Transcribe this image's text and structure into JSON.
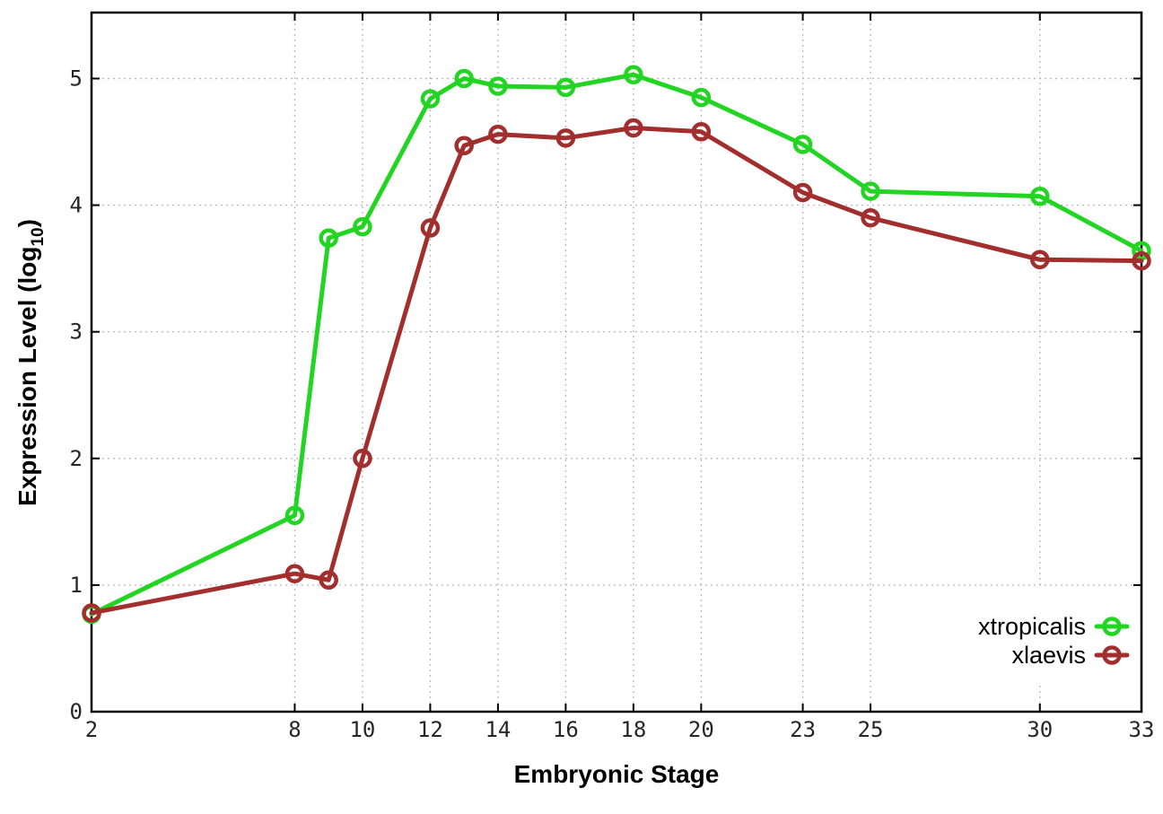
{
  "figure": {
    "background_color": "#ffffff",
    "border_color": "#000000",
    "grid_color": "#bdbdbd",
    "tick_text_color": "#262626"
  },
  "chart_data": {
    "type": "line",
    "title": "",
    "xlabel": "Embryonic Stage",
    "ylabel": "Expression Level (log10)",
    "ylabel_parts": {
      "prefix": "Expression Level (log",
      "sub": "10",
      "suffix": ")"
    },
    "x": [
      2,
      8,
      9,
      10,
      12,
      13,
      14,
      16,
      18,
      20,
      23,
      25,
      30,
      33
    ],
    "series": [
      {
        "name": "xtropicalis",
        "color": "#22d522",
        "values": [
          0.77,
          1.55,
          3.74,
          3.83,
          4.84,
          5.0,
          4.94,
          4.93,
          5.03,
          4.85,
          4.48,
          4.11,
          4.07,
          3.64
        ]
      },
      {
        "name": "xlaevis",
        "color": "#a32e2e",
        "values": [
          0.78,
          1.09,
          1.04,
          2.0,
          3.82,
          4.47,
          4.56,
          4.53,
          4.61,
          4.58,
          4.1,
          3.9,
          3.57,
          3.56
        ]
      }
    ],
    "x_ticks": [
      2,
      8,
      10,
      12,
      14,
      16,
      18,
      20,
      23,
      25,
      30,
      33
    ],
    "y_ticks": [
      0,
      1,
      2,
      3,
      4,
      5
    ],
    "xlim": [
      2,
      33
    ],
    "ylim": [
      0,
      5.5
    ],
    "grid": true,
    "marker_style": "open-circle",
    "legend_position": "inside-bottom-right",
    "legend_entries": [
      "xtropicalis",
      "xlaevis"
    ]
  }
}
